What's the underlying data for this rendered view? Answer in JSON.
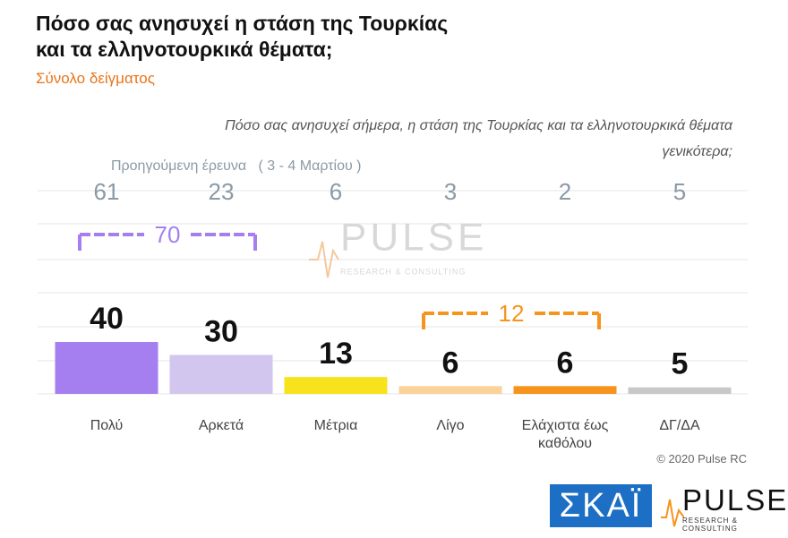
{
  "chart_data": {
    "type": "bar",
    "title": [
      "Πόσο σας ανησυχεί η στάση της Τουρκίας",
      "και τα ελληνοτουρκικά θέματα;"
    ],
    "subtitle": "Σύνολο δείγματος",
    "question": [
      "Πόσο σας ανησυχεί σήμερα, η στάση της Τουρκίας και τα ελληνοτουρκικά θέματα",
      "γενικότερα;"
    ],
    "previous_label": "Προηγούμενη έρευνα   ( 3 - 4 Μαρτίου )",
    "previous_values": [
      61,
      23,
      6,
      3,
      2,
      5
    ],
    "categories": [
      "Πολύ",
      "Αρκετά",
      "Μέτρια",
      "Λίγο",
      "Ελάχιστα έως καθόλου",
      "ΔΓ/ΔΑ"
    ],
    "values": [
      40,
      30,
      13,
      6,
      6,
      5
    ],
    "colors": [
      "#a57ff0",
      "#d3c6ee",
      "#f7e21b",
      "#fbd39a",
      "#f7941d",
      "#c8c8c8"
    ],
    "brackets": [
      {
        "value": 70,
        "spans": [
          0,
          1
        ],
        "color": "#a57ff0"
      },
      {
        "value": 12,
        "spans": [
          3,
          4
        ],
        "color": "#f7941d"
      }
    ],
    "watermark": "PULSE",
    "watermark_sub": "RESEARCH & CONSULTING",
    "copyright": "© 2020 Pulse RC",
    "logo_left": "ΣΚΑΪ",
    "logo_right": "PULSE",
    "logo_right_sub": "RESEARCH & CONSULTING"
  }
}
